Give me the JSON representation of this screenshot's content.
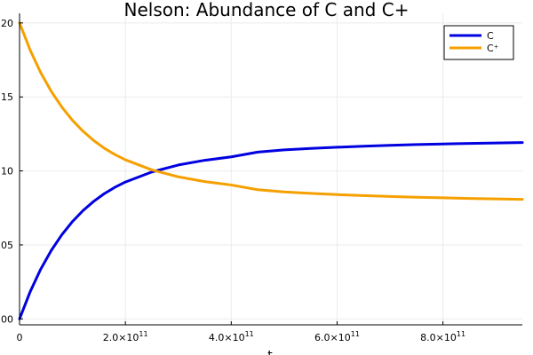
{
  "chart_data": {
    "type": "line",
    "title": "Nelson: Abundance of C and C+",
    "xlabel": "t",
    "ylabel": "",
    "xlim": [
      0,
      950000000000.0
    ],
    "ylim": [
      -0.004,
      0.2065
    ],
    "x_ticks": [
      {
        "value": 0,
        "label": "0",
        "exp": ""
      },
      {
        "value": 200000000000.0,
        "label": "2.0×10",
        "exp": "11"
      },
      {
        "value": 400000000000.0,
        "label": "4.0×10",
        "exp": "11"
      },
      {
        "value": 600000000000.0,
        "label": "6.0×10",
        "exp": "11"
      },
      {
        "value": 800000000000.0,
        "label": "8.0×10",
        "exp": "11"
      }
    ],
    "y_ticks": [
      {
        "value": 0.0,
        "label": "00"
      },
      {
        "value": 0.05,
        "label": "05"
      },
      {
        "value": 0.1,
        "label": "10"
      },
      {
        "value": 0.15,
        "label": "15"
      },
      {
        "value": 0.2,
        "label": "20"
      }
    ],
    "grid": true,
    "legend_position": "top-right",
    "series": [
      {
        "name": "C",
        "color": "#0000e0",
        "x": [
          0,
          20000000000.0,
          40000000000.0,
          60000000000.0,
          80000000000.0,
          100000000000.0,
          120000000000.0,
          140000000000.0,
          160000000000.0,
          180000000000.0,
          200000000000.0,
          250000000000.0,
          300000000000.0,
          350000000000.0,
          400000000000.0,
          450000000000.0,
          500000000000.0,
          550000000000.0,
          600000000000.0,
          650000000000.0,
          700000000000.0,
          750000000000.0,
          800000000000.0,
          850000000000.0,
          900000000000.0,
          950000000000.0
        ],
        "y": [
          0.0,
          0.0183,
          0.0336,
          0.0463,
          0.0569,
          0.0658,
          0.0732,
          0.0794,
          0.0846,
          0.0889,
          0.0925,
          0.0993,
          0.104,
          0.1072,
          0.1095,
          0.1127,
          0.1142,
          0.1152,
          0.116,
          0.1167,
          0.1173,
          0.1178,
          0.1182,
          0.1186,
          0.1189,
          0.1192
        ]
      },
      {
        "name": "C⁺",
        "color": "#f5a000",
        "x": [
          0,
          20000000000.0,
          40000000000.0,
          60000000000.0,
          80000000000.0,
          100000000000.0,
          120000000000.0,
          140000000000.0,
          160000000000.0,
          180000000000.0,
          200000000000.0,
          250000000000.0,
          300000000000.0,
          350000000000.0,
          400000000000.0,
          450000000000.0,
          500000000000.0,
          550000000000.0,
          600000000000.0,
          650000000000.0,
          700000000000.0,
          750000000000.0,
          800000000000.0,
          850000000000.0,
          900000000000.0,
          950000000000.0
        ],
        "y": [
          0.2,
          0.1817,
          0.1664,
          0.1537,
          0.1431,
          0.1342,
          0.1268,
          0.1206,
          0.1154,
          0.1111,
          0.1075,
          0.1007,
          0.096,
          0.0928,
          0.0905,
          0.0873,
          0.0858,
          0.0848,
          0.084,
          0.0833,
          0.0827,
          0.0822,
          0.0818,
          0.0814,
          0.0811,
          0.0808
        ]
      }
    ]
  }
}
